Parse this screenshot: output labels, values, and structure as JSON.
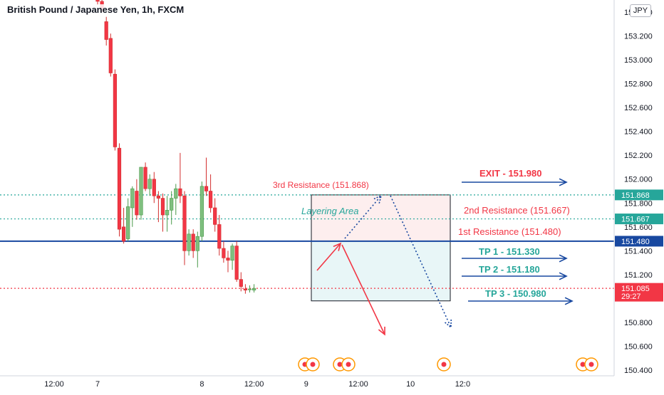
{
  "header": {
    "title": "British Pound / Japanese Yen, 1h, FXCM"
  },
  "currency_button": "JPY",
  "chart_data": {
    "type": "candlestick",
    "symbol": "British Pound / Japanese Yen",
    "interval": "1h",
    "source": "FXCM",
    "ylim": [
      150.4,
      153.4
    ],
    "y_ticks": [
      "153.400",
      "153.200",
      "153.000",
      "152.800",
      "152.600",
      "152.400",
      "152.200",
      "152.000",
      "151.800",
      "151.600",
      "151.400",
      "151.200",
      "151.000",
      "150.800",
      "150.600",
      "150.400"
    ],
    "x_ticks": [
      {
        "label": "12:00",
        "bar": -10
      },
      {
        "label": "7",
        "bar": 0
      },
      {
        "label": "8",
        "bar": 24
      },
      {
        "label": "12:00",
        "bar": 36
      },
      {
        "label": "9",
        "bar": 48
      },
      {
        "label": "12:00",
        "bar": 60
      },
      {
        "label": "10",
        "bar": 72
      },
      {
        "label": "12:0",
        "bar": 84
      }
    ],
    "candles": [
      {
        "o": 153.52,
        "h": 153.56,
        "l": 153.46,
        "c": 153.49
      },
      {
        "o": 153.49,
        "h": 153.53,
        "l": 153.4,
        "c": 153.43
      },
      {
        "o": 153.32,
        "h": 153.36,
        "l": 153.12,
        "c": 153.17
      },
      {
        "o": 153.18,
        "h": 153.22,
        "l": 152.86,
        "c": 152.89
      },
      {
        "o": 152.88,
        "h": 152.92,
        "l": 152.24,
        "c": 152.27
      },
      {
        "o": 152.26,
        "h": 152.3,
        "l": 151.52,
        "c": 151.58
      },
      {
        "o": 151.6,
        "h": 151.76,
        "l": 151.46,
        "c": 151.48
      },
      {
        "o": 151.5,
        "h": 151.84,
        "l": 151.48,
        "c": 151.77
      },
      {
        "o": 151.76,
        "h": 151.94,
        "l": 151.6,
        "c": 151.92
      },
      {
        "o": 151.9,
        "h": 152.0,
        "l": 151.66,
        "c": 151.7
      },
      {
        "o": 151.7,
        "h": 152.08,
        "l": 151.66,
        "c": 152.1
      },
      {
        "o": 152.1,
        "h": 152.14,
        "l": 151.9,
        "c": 151.92
      },
      {
        "o": 151.92,
        "h": 152.04,
        "l": 151.86,
        "c": 152.0
      },
      {
        "o": 152.0,
        "h": 152.06,
        "l": 151.8,
        "c": 151.86
      },
      {
        "o": 151.86,
        "h": 151.9,
        "l": 151.64,
        "c": 151.84
      },
      {
        "o": 151.84,
        "h": 151.88,
        "l": 151.56,
        "c": 151.7
      },
      {
        "o": 151.7,
        "h": 151.86,
        "l": 151.56,
        "c": 151.74
      },
      {
        "o": 151.74,
        "h": 151.9,
        "l": 151.62,
        "c": 151.84
      },
      {
        "o": 151.84,
        "h": 151.96,
        "l": 151.7,
        "c": 151.92
      },
      {
        "o": 151.92,
        "h": 152.22,
        "l": 151.8,
        "c": 151.86
      },
      {
        "o": 151.86,
        "h": 151.9,
        "l": 151.28,
        "c": 151.4
      },
      {
        "o": 151.4,
        "h": 151.58,
        "l": 151.36,
        "c": 151.54
      },
      {
        "o": 151.54,
        "h": 151.58,
        "l": 151.34,
        "c": 151.4
      },
      {
        "o": 151.4,
        "h": 151.56,
        "l": 151.26,
        "c": 151.52
      },
      {
        "o": 151.52,
        "h": 151.98,
        "l": 151.48,
        "c": 151.94
      },
      {
        "o": 151.94,
        "h": 152.18,
        "l": 151.86,
        "c": 151.9
      },
      {
        "o": 151.9,
        "h": 152.04,
        "l": 151.72,
        "c": 151.76
      },
      {
        "o": 151.76,
        "h": 151.84,
        "l": 151.56,
        "c": 151.62
      },
      {
        "o": 151.62,
        "h": 151.7,
        "l": 151.36,
        "c": 151.42
      },
      {
        "o": 151.42,
        "h": 151.48,
        "l": 151.3,
        "c": 151.34
      },
      {
        "o": 151.34,
        "h": 151.4,
        "l": 151.22,
        "c": 151.32
      },
      {
        "o": 151.32,
        "h": 151.46,
        "l": 151.24,
        "c": 151.44
      },
      {
        "o": 151.44,
        "h": 151.48,
        "l": 151.14,
        "c": 151.16
      },
      {
        "o": 151.16,
        "h": 151.22,
        "l": 151.06,
        "c": 151.1
      },
      {
        "o": 151.08,
        "h": 151.12,
        "l": 151.04,
        "c": 151.07
      },
      {
        "o": 151.08,
        "h": 151.11,
        "l": 151.05,
        "c": 151.08
      },
      {
        "o": 151.07,
        "h": 151.12,
        "l": 151.05,
        "c": 151.085
      }
    ],
    "price_levels": [
      {
        "value": 151.868,
        "label": "151.868",
        "style": "dotted",
        "color": "#26a69a"
      },
      {
        "value": 151.667,
        "label": "151.667",
        "style": "dotted",
        "color": "#26a69a"
      },
      {
        "value": 151.48,
        "label": "151.480",
        "style": "solid",
        "color": "#1848a0"
      },
      {
        "value": 151.085,
        "label": "151.085",
        "sublabel": "29:27",
        "style": "dotted",
        "color": "#f23645"
      }
    ],
    "annotations": [
      {
        "text": "3rd Resistance (151.868)",
        "color": "#f23645"
      },
      {
        "text": "Layering Area",
        "color": "#26a69a"
      },
      {
        "text": "2nd Resistance (151.667)",
        "color": "#f23645"
      },
      {
        "text": "1st Resistance (151.480)",
        "color": "#f23645"
      },
      {
        "text": "EXIT - 151.980",
        "color": "#f23645"
      },
      {
        "text": "TP 1 - 151.330",
        "color": "#26a69a"
      },
      {
        "text": "TP 2 - 151.180",
        "color": "#26a69a"
      },
      {
        "text": "TP 3 - 150.980",
        "color": "#26a69a"
      }
    ],
    "colors": {
      "up": "#26a69a",
      "down": "#f23645",
      "up_body": "#7fbf7f",
      "accent": "#1848a0"
    }
  }
}
